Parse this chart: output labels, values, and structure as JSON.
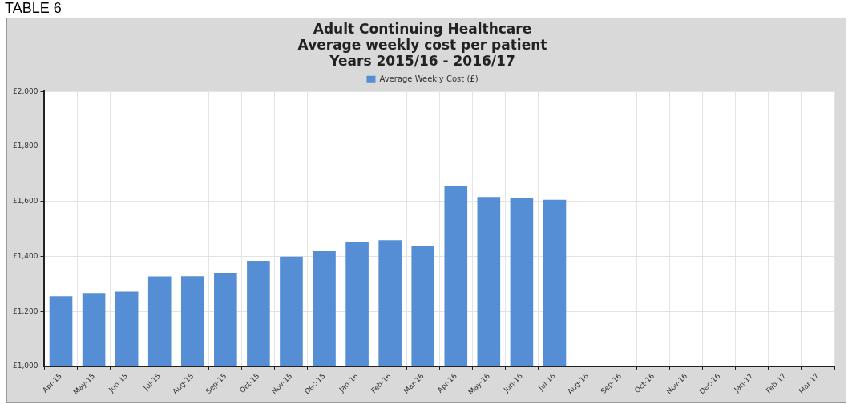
{
  "chart_data": {
    "type": "bar",
    "title": "Adult Continuing Healthcare\nAverage weekly cost per patient\nYears 2015/16 - 2016/17",
    "annotations": [
      "TABLE 6"
    ],
    "categories": [
      "Apr-15",
      "May-15",
      "Jun-15",
      "Jul-15",
      "Aug-15",
      "Sep-15",
      "Oct-15",
      "Nov-15",
      "Dec-15",
      "Jan-16",
      "Feb-16",
      "Mar-16",
      "Apr-16",
      "May-16",
      "Jun-16",
      "Jul-16",
      "Aug-16",
      "Sep-16",
      "Oct-16",
      "Nov-16",
      "Dec-16",
      "Jan-17",
      "Feb-17",
      "Mar-17"
    ],
    "series": [
      {
        "name": "Average Weekly Cost (£)",
        "color": "#558ed5",
        "values": [
          1255,
          1267,
          1272,
          1327,
          1328,
          1340,
          1384,
          1399,
          1419,
          1453,
          1459,
          1439,
          1657,
          1616,
          1613,
          1606,
          null,
          null,
          null,
          null,
          null,
          null,
          null,
          null
        ]
      }
    ],
    "ylim": [
      1000,
      2000
    ],
    "yticks": [
      {
        "value": 1000,
        "label": "£1,000"
      },
      {
        "value": 1200,
        "label": "£1,200"
      },
      {
        "value": 1400,
        "label": "£1,400"
      },
      {
        "value": 1600,
        "label": "£1,600"
      },
      {
        "value": 1800,
        "label": "£1,800"
      },
      {
        "value": 2000,
        "label": "£2,000"
      }
    ],
    "grid": true,
    "legend": "top"
  }
}
